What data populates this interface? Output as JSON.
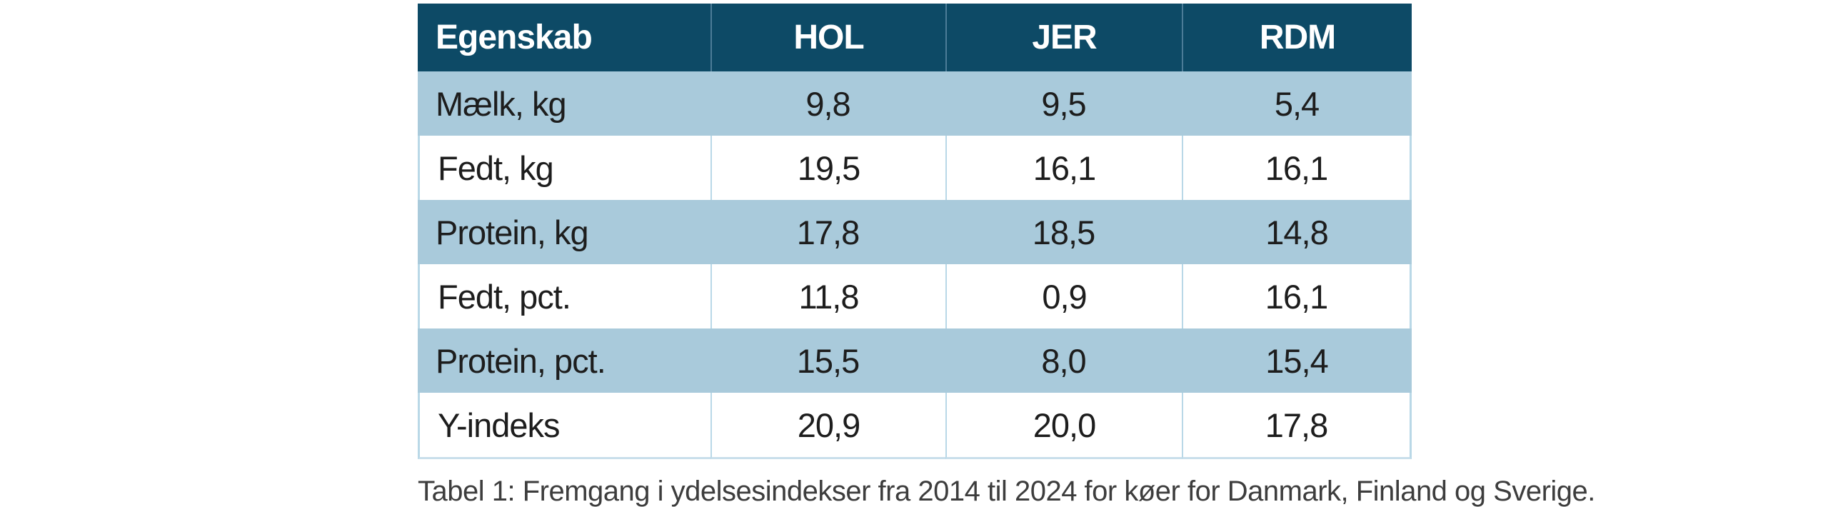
{
  "table": {
    "columns": [
      "Egenskab",
      "HOL",
      "JER",
      "RDM"
    ],
    "rows": [
      {
        "label": "Mælk, kg",
        "values": [
          "9,8",
          "9,5",
          "5,4"
        ]
      },
      {
        "label": "Fedt, kg",
        "values": [
          "19,5",
          "16,1",
          "16,1"
        ]
      },
      {
        "label": "Protein, kg",
        "values": [
          "17,8",
          "18,5",
          "14,8"
        ]
      },
      {
        "label": "Fedt, pct.",
        "values": [
          "11,8",
          "0,9",
          "16,1"
        ]
      },
      {
        "label": "Protein, pct.",
        "values": [
          "15,5",
          "8,0",
          "15,4"
        ]
      },
      {
        "label": "Y-indeks",
        "values": [
          "20,9",
          "20,0",
          "17,8"
        ]
      }
    ]
  },
  "caption": "Tabel 1: Fremgang i ydelsesindekser fra 2014 til 2024 for køer for Danmark, Finland og Sverige.",
  "colors": {
    "header_background": "#0d4a66",
    "header_text": "#ffffff",
    "row_alt_background": "#a9cadb",
    "row_background": "#ffffff",
    "grid_line_on_dark": "#4c7c97",
    "grid_line_on_light": "#b9d8e7",
    "body_text": "#1d1d1d",
    "caption_text": "#3d3d3d"
  },
  "chart_data": {
    "type": "table",
    "title": "Tabel 1: Fremgang i ydelsesindekser fra 2014 til 2024 for køer for Danmark, Finland og Sverige.",
    "columns": [
      "Egenskab",
      "HOL",
      "JER",
      "RDM"
    ],
    "rows": [
      {
        "egenskab": "Mælk, kg",
        "HOL": 9.8,
        "JER": 9.5,
        "RDM": 5.4
      },
      {
        "egenskab": "Fedt, kg",
        "HOL": 19.5,
        "JER": 16.1,
        "RDM": 16.1
      },
      {
        "egenskab": "Protein, kg",
        "HOL": 17.8,
        "JER": 18.5,
        "RDM": 14.8
      },
      {
        "egenskab": "Fedt, pct.",
        "HOL": 11.8,
        "JER": 0.9,
        "RDM": 16.1
      },
      {
        "egenskab": "Protein, pct.",
        "HOL": 15.5,
        "JER": 8.0,
        "RDM": 15.4
      },
      {
        "egenskab": "Y-indeks",
        "HOL": 20.9,
        "JER": 20.0,
        "RDM": 17.8
      }
    ],
    "notes": "Decimal comma formatting as displayed; striped rows alternate light blue (#a9cadb) and white; dark blue header row (#0d4a66)."
  }
}
